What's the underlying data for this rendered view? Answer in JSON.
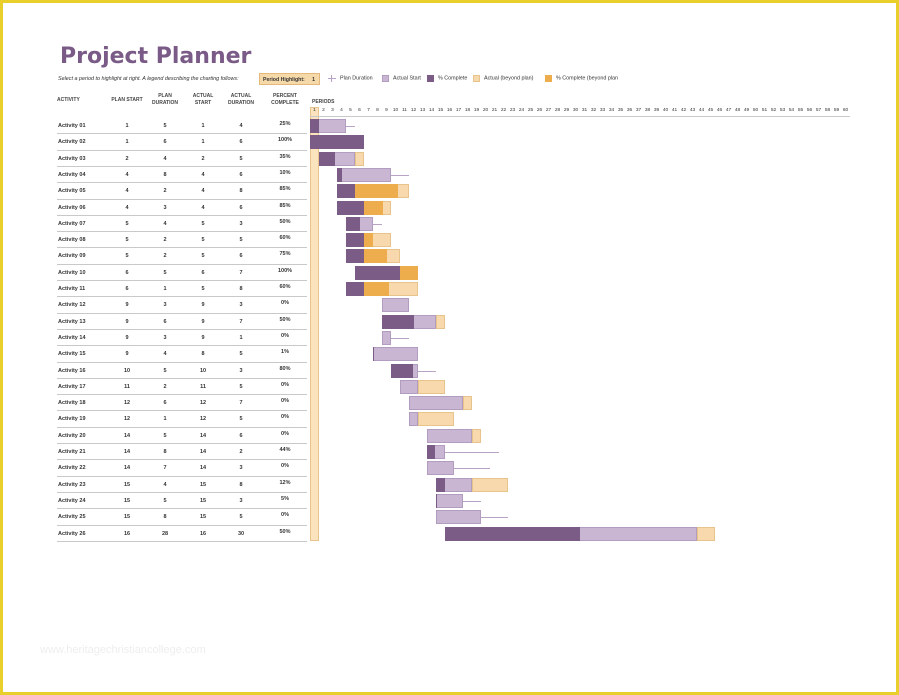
{
  "title": "Project Planner",
  "instructions": "Select a period to highlight at right.  A legend describing the charting follows:",
  "period_highlight": {
    "label": "Period Highlight:",
    "value": "1"
  },
  "legend": [
    {
      "label": "Plan Duration",
      "kind": "plan"
    },
    {
      "label": "Actual Start",
      "kind": "actual"
    },
    {
      "label": "% Complete",
      "kind": "complete"
    },
    {
      "label": "Actual (beyond plan)",
      "kind": "beyond"
    },
    {
      "label": "% Complete (beyond plan",
      "kind": "complete_beyond"
    }
  ],
  "colors": {
    "plan_line": "#b9a3c4",
    "actual": "#c9b6d3",
    "complete": "#7b5c86",
    "beyond": "#f7d9ad",
    "complete_beyond": "#eead4d",
    "highlight": "#fbe3bd",
    "title": "#7a5a86"
  },
  "columns": {
    "activity": "ACTIVITY",
    "plan_start": "PLAN START",
    "plan_duration": "PLAN DURATION",
    "actual_start": "ACTUAL START",
    "actual_duration": "ACTUAL DURATION",
    "percent_complete": "PERCENT COMPLETE"
  },
  "periods_label": "PERIODS",
  "period_count": 60,
  "activities": [
    {
      "name": "Activity 01",
      "plan_start": 1,
      "plan_duration": 5,
      "actual_start": 1,
      "actual_duration": 4,
      "percent": "25%"
    },
    {
      "name": "Activity 02",
      "plan_start": 1,
      "plan_duration": 6,
      "actual_start": 1,
      "actual_duration": 6,
      "percent": "100%"
    },
    {
      "name": "Activity 03",
      "plan_start": 2,
      "plan_duration": 4,
      "actual_start": 2,
      "actual_duration": 5,
      "percent": "35%"
    },
    {
      "name": "Activity 04",
      "plan_start": 4,
      "plan_duration": 8,
      "actual_start": 4,
      "actual_duration": 6,
      "percent": "10%"
    },
    {
      "name": "Activity 05",
      "plan_start": 4,
      "plan_duration": 2,
      "actual_start": 4,
      "actual_duration": 8,
      "percent": "85%"
    },
    {
      "name": "Activity 06",
      "plan_start": 4,
      "plan_duration": 3,
      "actual_start": 4,
      "actual_duration": 6,
      "percent": "85%"
    },
    {
      "name": "Activity 07",
      "plan_start": 5,
      "plan_duration": 4,
      "actual_start": 5,
      "actual_duration": 3,
      "percent": "50%"
    },
    {
      "name": "Activity 08",
      "plan_start": 5,
      "plan_duration": 2,
      "actual_start": 5,
      "actual_duration": 5,
      "percent": "60%"
    },
    {
      "name": "Activity 09",
      "plan_start": 5,
      "plan_duration": 2,
      "actual_start": 5,
      "actual_duration": 6,
      "percent": "75%"
    },
    {
      "name": "Activity 10",
      "plan_start": 6,
      "plan_duration": 5,
      "actual_start": 6,
      "actual_duration": 7,
      "percent": "100%"
    },
    {
      "name": "Activity 11",
      "plan_start": 6,
      "plan_duration": 1,
      "actual_start": 5,
      "actual_duration": 8,
      "percent": "60%"
    },
    {
      "name": "Activity 12",
      "plan_start": 9,
      "plan_duration": 3,
      "actual_start": 9,
      "actual_duration": 3,
      "percent": "0%"
    },
    {
      "name": "Activity 13",
      "plan_start": 9,
      "plan_duration": 6,
      "actual_start": 9,
      "actual_duration": 7,
      "percent": "50%"
    },
    {
      "name": "Activity 14",
      "plan_start": 9,
      "plan_duration": 3,
      "actual_start": 9,
      "actual_duration": 1,
      "percent": "0%"
    },
    {
      "name": "Activity 15",
      "plan_start": 9,
      "plan_duration": 4,
      "actual_start": 8,
      "actual_duration": 5,
      "percent": "1%"
    },
    {
      "name": "Activity 16",
      "plan_start": 10,
      "plan_duration": 5,
      "actual_start": 10,
      "actual_duration": 3,
      "percent": "80%"
    },
    {
      "name": "Activity 17",
      "plan_start": 11,
      "plan_duration": 2,
      "actual_start": 11,
      "actual_duration": 5,
      "percent": "0%"
    },
    {
      "name": "Activity 18",
      "plan_start": 12,
      "plan_duration": 6,
      "actual_start": 12,
      "actual_duration": 7,
      "percent": "0%"
    },
    {
      "name": "Activity 19",
      "plan_start": 12,
      "plan_duration": 1,
      "actual_start": 12,
      "actual_duration": 5,
      "percent": "0%"
    },
    {
      "name": "Activity 20",
      "plan_start": 14,
      "plan_duration": 5,
      "actual_start": 14,
      "actual_duration": 6,
      "percent": "0%"
    },
    {
      "name": "Activity 21",
      "plan_start": 14,
      "plan_duration": 8,
      "actual_start": 14,
      "actual_duration": 2,
      "percent": "44%"
    },
    {
      "name": "Activity 22",
      "plan_start": 14,
      "plan_duration": 7,
      "actual_start": 14,
      "actual_duration": 3,
      "percent": "0%"
    },
    {
      "name": "Activity 23",
      "plan_start": 15,
      "plan_duration": 4,
      "actual_start": 15,
      "actual_duration": 8,
      "percent": "12%"
    },
    {
      "name": "Activity 24",
      "plan_start": 15,
      "plan_duration": 5,
      "actual_start": 15,
      "actual_duration": 3,
      "percent": "5%"
    },
    {
      "name": "Activity 25",
      "plan_start": 15,
      "plan_duration": 8,
      "actual_start": 15,
      "actual_duration": 5,
      "percent": "0%"
    },
    {
      "name": "Activity 26",
      "plan_start": 16,
      "plan_duration": 28,
      "actual_start": 16,
      "actual_duration": 30,
      "percent": "50%"
    }
  ],
  "watermark": "www.heritagechristiancollege.com"
}
